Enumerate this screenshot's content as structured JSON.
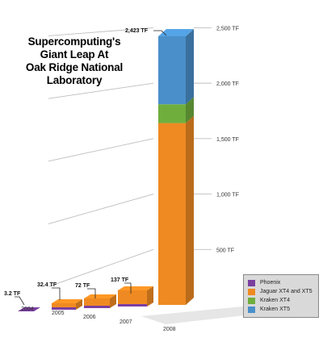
{
  "title_lines": [
    "Supercomputing's",
    "Giant Leap At",
    "Oak Ridge National",
    "Laboratory"
  ],
  "colors": {
    "phoenix": "#7b3fa0",
    "jaguar": "#ef8a22",
    "kraken_xt4": "#6fae3d",
    "kraken_xt5": "#4a8fc9",
    "grid": "#bdbdbd",
    "legend_bg": "#d9d9d9"
  },
  "chart_data": {
    "type": "bar",
    "stacked": true,
    "title": "Supercomputing's Giant Leap At Oak Ridge National Laboratory",
    "categories": [
      "2004",
      "2005",
      "2006",
      "2007",
      "2008"
    ],
    "series": [
      {
        "name": "Phoenix",
        "values": [
          3.2,
          3.2,
          3.2,
          3.2,
          0
        ]
      },
      {
        "name": "Jaguar XT4 and XT5",
        "values": [
          0,
          29.2,
          68.8,
          133.8,
          1640
        ]
      },
      {
        "name": "Kraken XT4",
        "values": [
          0,
          0,
          0,
          0,
          170
        ]
      },
      {
        "name": "Kraken XT5",
        "values": [
          0,
          0,
          0,
          0,
          613
        ]
      }
    ],
    "totals": [
      3.2,
      32.4,
      72,
      137,
      2423
    ],
    "total_labels": [
      "3.2 TF",
      "32.4 TF",
      "72 TF",
      "137 TF",
      "2,423 TF"
    ],
    "y_ticks": [
      0,
      500,
      1000,
      1500,
      2000,
      2500
    ],
    "y_tick_labels": [
      "0",
      "500 TF",
      "1,000 TF",
      "1,500 TF",
      "2,000 TF",
      "2,500 TF"
    ],
    "ylim": [
      0,
      2500
    ],
    "legend_position": "bottom-right",
    "grid": true
  }
}
